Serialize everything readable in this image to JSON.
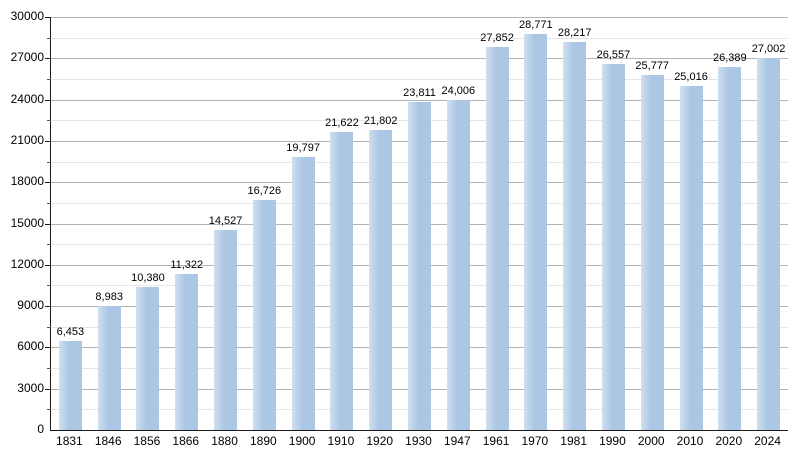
{
  "chart_data": {
    "type": "bar",
    "title": "",
    "xlabel": "",
    "ylabel": "",
    "categories": [
      "1831",
      "1846",
      "1856",
      "1866",
      "1880",
      "1890",
      "1900",
      "1910",
      "1920",
      "1930",
      "1947",
      "1961",
      "1970",
      "1981",
      "1990",
      "2000",
      "2010",
      "2020",
      "2024"
    ],
    "values": [
      6453,
      8983,
      10380,
      11322,
      14527,
      16726,
      19797,
      21622,
      21802,
      23811,
      24006,
      27852,
      28771,
      28217,
      26557,
      25777,
      25016,
      26389,
      27002
    ],
    "value_labels": [
      "6,453",
      "8,983",
      "10,380",
      "11,322",
      "14,527",
      "16,726",
      "19,797",
      "21,622",
      "21,802",
      "23,811",
      "24,006",
      "27,852",
      "28,771",
      "28,217",
      "26,557",
      "25,777",
      "25,016",
      "26,389",
      "27,002"
    ],
    "ylim": [
      0,
      30000
    ],
    "y_ticks": [
      0,
      3000,
      6000,
      9000,
      12000,
      15000,
      18000,
      21000,
      24000,
      27000,
      30000
    ],
    "y_major_step": 3000,
    "y_minor_step": 1500,
    "grid": "on",
    "legend": "none",
    "bar_color": "#abc7e4",
    "bar_color_light": "#cfdff0",
    "grid_major_color": "#b2b2b2",
    "grid_minor_color": "#e6e6e6",
    "axis_color": "#1a1a1a"
  }
}
